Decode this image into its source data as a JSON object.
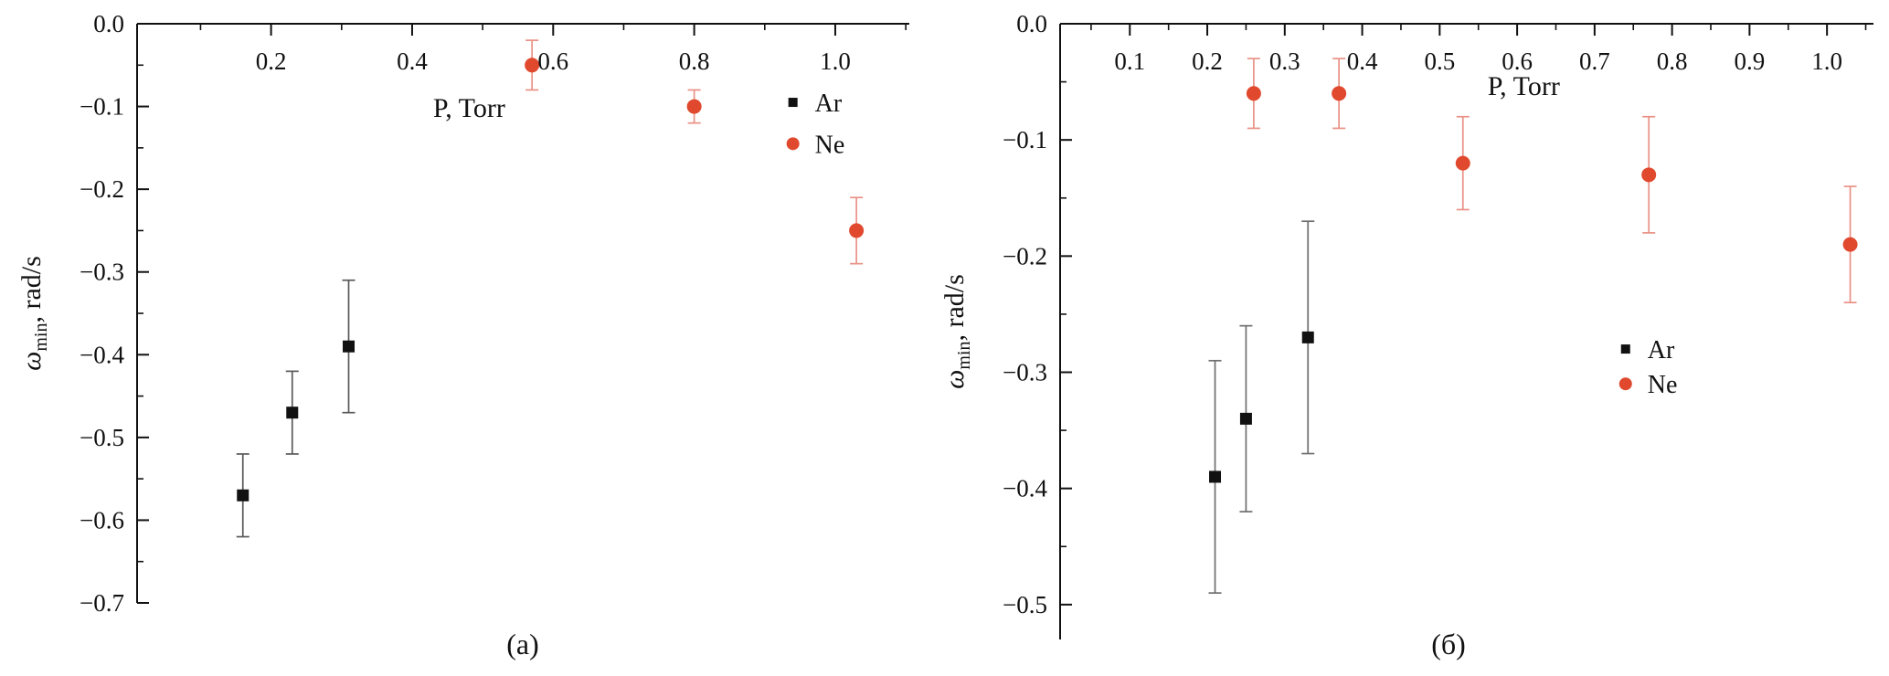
{
  "figure": {
    "background": "#ffffff",
    "description_colors": {
      "ar_marker": "#111111",
      "ne_marker": "#e0492e"
    }
  },
  "chart_data": [
    {
      "id": "a",
      "type": "scatter",
      "caption": "(а)",
      "xlabel": "P, Torr",
      "ylabel": {
        "base": "ω",
        "sub": "min",
        "rest": ", rad/s"
      },
      "xlim": [
        0.01,
        1.105
      ],
      "ylim": [
        -0.7,
        0
      ],
      "grid": false,
      "legend_position": "upper-right-inside",
      "xticks": [
        0.2,
        0.4,
        0.6,
        0.8,
        1.0
      ],
      "xtick_labels": [
        "0.2",
        "0.4",
        "0.6",
        "0.8",
        "1.0"
      ],
      "xlabel_frac": 0.43,
      "yticks": [
        0,
        -0.1,
        -0.2,
        -0.3,
        -0.4,
        -0.5,
        -0.6,
        -0.7
      ],
      "ytick_labels": [
        "0.0",
        "−0.1",
        "−0.2",
        "−0.3",
        "−0.4",
        "−0.5",
        "−0.6",
        "−0.7"
      ],
      "legend": {
        "x": 0.94,
        "rows_y": [
          -0.095,
          -0.145
        ]
      },
      "series": [
        {
          "name": "Ar",
          "marker": "square",
          "color": "#111111",
          "err_color": "#5a5a5a",
          "points": [
            {
              "x": 0.16,
              "y": -0.57,
              "err": 0.05
            },
            {
              "x": 0.23,
              "y": -0.47,
              "err": 0.05
            },
            {
              "x": 0.31,
              "y": -0.39,
              "err": 0.08
            }
          ]
        },
        {
          "name": "Ne",
          "marker": "circle",
          "color": "#e0492e",
          "err_color": "#ea9186",
          "points": [
            {
              "x": 0.57,
              "y": -0.05,
              "err": 0.03
            },
            {
              "x": 0.8,
              "y": -0.1,
              "err": 0.02
            },
            {
              "x": 1.03,
              "y": -0.25,
              "err": 0.04
            }
          ]
        }
      ]
    },
    {
      "id": "b",
      "type": "scatter",
      "caption": "(б)",
      "xlabel": "P, Torr",
      "ylabel": {
        "base": "ω",
        "sub": "min",
        "rest": ", rad/s"
      },
      "xlim": [
        0.01,
        1.06
      ],
      "ylim": [
        -0.53,
        0
      ],
      "grid": false,
      "legend_position": "middle-right-inside",
      "xticks": [
        0.1,
        0.2,
        0.3,
        0.4,
        0.5,
        0.6,
        0.7,
        0.8,
        0.9,
        1.0
      ],
      "xtick_labels": [
        "0.1",
        "0.2",
        "0.3",
        "0.4",
        "0.5",
        "0.6",
        "0.7",
        "0.8",
        "0.9",
        "1.0"
      ],
      "xlabel_frac": 0.57,
      "yticks": [
        0,
        -0.1,
        -0.2,
        -0.3,
        -0.4,
        -0.5
      ],
      "ytick_labels": [
        "0.0",
        "−0.1",
        "−0.2",
        "−0.3",
        "−0.4",
        "−0.5"
      ],
      "legend": {
        "x": 0.74,
        "rows_y": [
          -0.28,
          -0.31
        ]
      },
      "series": [
        {
          "name": "Ar",
          "marker": "square",
          "color": "#111111",
          "err_color": "#6f6f6f",
          "points": [
            {
              "x": 0.21,
              "y": -0.39,
              "err": 0.1
            },
            {
              "x": 0.25,
              "y": -0.34,
              "err": 0.08
            },
            {
              "x": 0.33,
              "y": -0.27,
              "err": 0.1
            }
          ]
        },
        {
          "name": "Ne",
          "marker": "circle",
          "color": "#e0492e",
          "err_color": "#ea9186",
          "points": [
            {
              "x": 0.26,
              "y": -0.06,
              "err": 0.03
            },
            {
              "x": 0.37,
              "y": -0.06,
              "err": 0.03
            },
            {
              "x": 0.53,
              "y": -0.12,
              "err": 0.04
            },
            {
              "x": 0.77,
              "y": -0.13,
              "err": 0.05
            },
            {
              "x": 1.03,
              "y": -0.19,
              "err": 0.05
            }
          ]
        }
      ]
    }
  ]
}
